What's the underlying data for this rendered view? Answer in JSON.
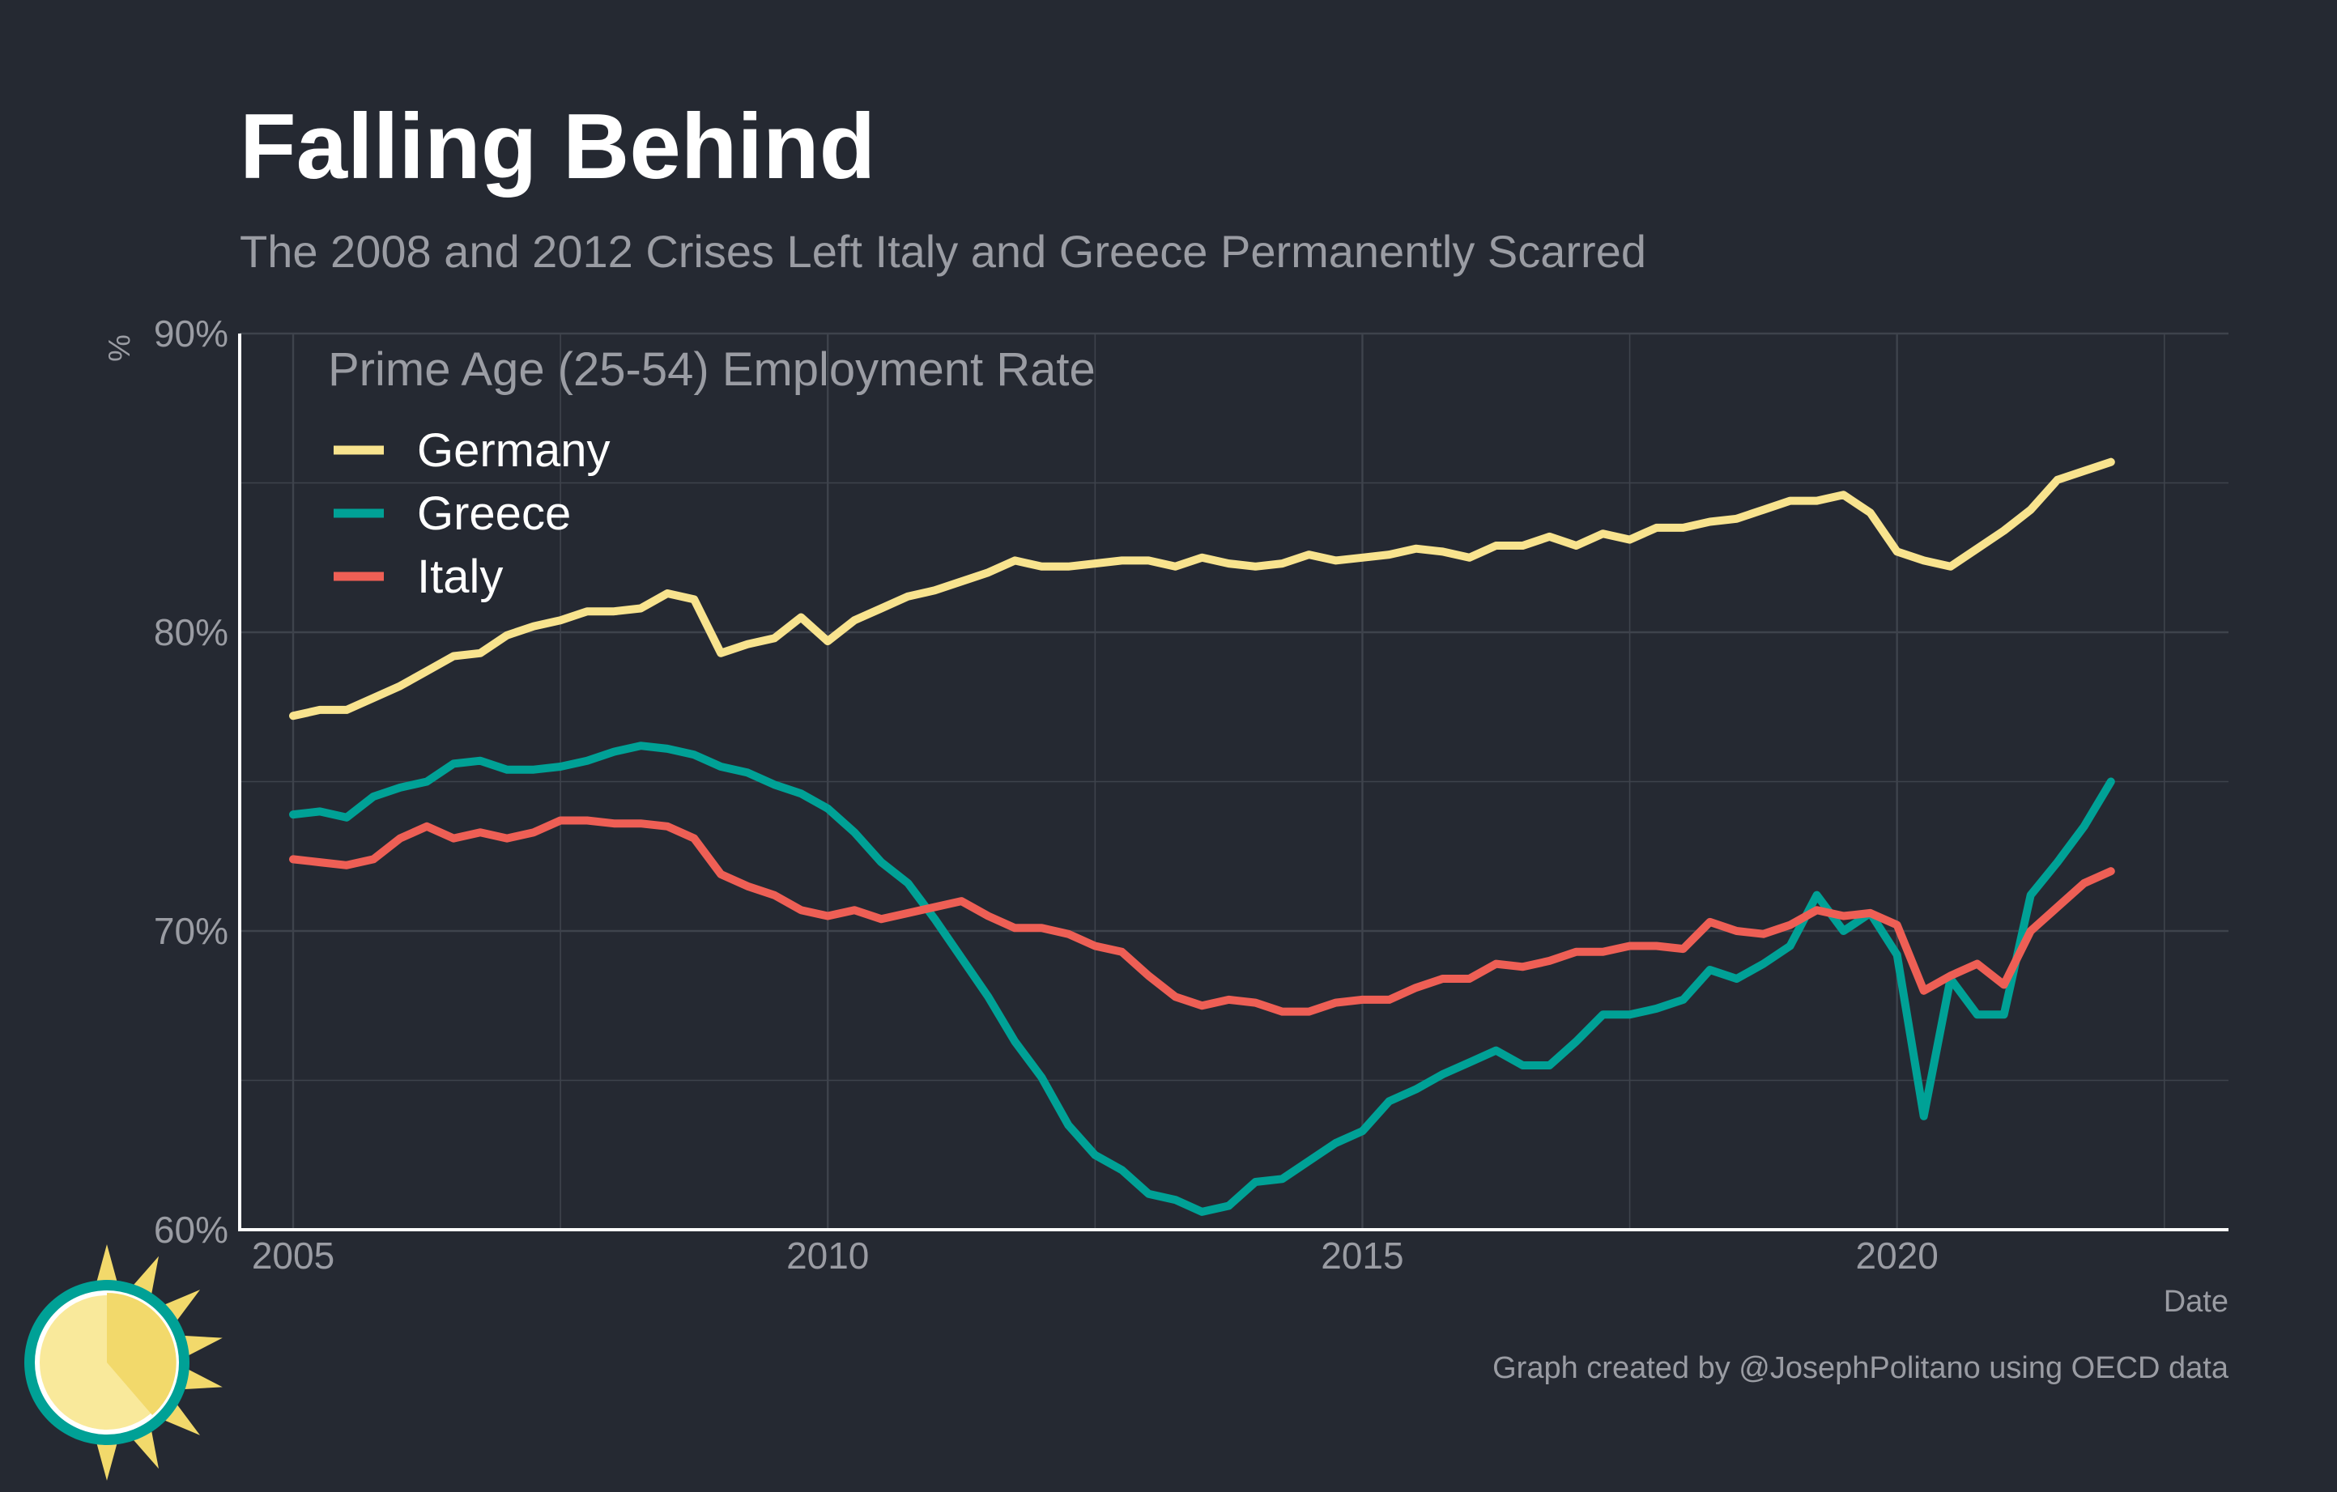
{
  "title": "Falling Behind",
  "subtitle": "The 2008 and 2012 Crises Left Italy and Greece Permanently Scarred",
  "caption": "Graph created by @JosephPolitano using OECD data",
  "colors": {
    "background": "#252932",
    "text": "#ffffff",
    "muted_text": "#9a9ca3",
    "grid": "#3e434c",
    "axis": "#ffffff",
    "Germany": "#f8e38e",
    "Greece": "#00a196",
    "Italy": "#ee5f55"
  },
  "logo": {
    "icon": "sun-logo-icon"
  },
  "chart_data": {
    "type": "line",
    "title": "Falling Behind",
    "subtitle": "The 2008 and 2012 Crises Left Italy and Greece Permanently Scarred",
    "xlabel": "Date",
    "ylabel": "%",
    "legend_title": "Prime Age (25-54) Employment Rate",
    "legend_position": "top-left (inside plot)",
    "grid": true,
    "xlim": [
      2004.5,
      2023.1
    ],
    "ylim": [
      60,
      90
    ],
    "x_ticks": [
      2005,
      2010,
      2015,
      2020
    ],
    "x_tick_labels": [
      "2005",
      "2010",
      "2015",
      "2020"
    ],
    "y_ticks": [
      60,
      70,
      80,
      90
    ],
    "y_tick_labels": [
      "60%",
      "70%",
      "80%",
      "90%"
    ],
    "x": [
      2005.0,
      2005.25,
      2005.5,
      2005.75,
      2006.0,
      2006.25,
      2006.5,
      2006.75,
      2007.0,
      2007.25,
      2007.5,
      2007.75,
      2008.0,
      2008.25,
      2008.5,
      2008.75,
      2009.0,
      2009.25,
      2009.5,
      2009.75,
      2010.0,
      2010.25,
      2010.5,
      2010.75,
      2011.0,
      2011.25,
      2011.5,
      2011.75,
      2012.0,
      2012.25,
      2012.5,
      2012.75,
      2013.0,
      2013.25,
      2013.5,
      2013.75,
      2014.0,
      2014.25,
      2014.5,
      2014.75,
      2015.0,
      2015.25,
      2015.5,
      2015.75,
      2016.0,
      2016.25,
      2016.5,
      2016.75,
      2017.0,
      2017.25,
      2017.5,
      2017.75,
      2018.0,
      2018.25,
      2018.5,
      2018.75,
      2019.0,
      2019.25,
      2019.5,
      2019.75,
      2020.0,
      2020.25,
      2020.5,
      2020.75,
      2021.0,
      2021.25,
      2021.5,
      2021.75,
      2022.0
    ],
    "series": [
      {
        "name": "Germany",
        "values": [
          77.2,
          77.4,
          77.4,
          77.8,
          78.2,
          78.7,
          79.2,
          79.3,
          79.9,
          80.2,
          80.4,
          80.7,
          80.7,
          80.8,
          81.3,
          81.1,
          79.3,
          79.6,
          79.8,
          80.5,
          79.7,
          80.4,
          80.8,
          81.2,
          81.4,
          81.7,
          82.0,
          82.4,
          82.2,
          82.2,
          82.3,
          82.4,
          82.4,
          82.2,
          82.5,
          82.3,
          82.2,
          82.3,
          82.6,
          82.4,
          82.5,
          82.6,
          82.8,
          82.7,
          82.5,
          82.9,
          82.9,
          83.2,
          82.9,
          83.3,
          83.1,
          83.5,
          83.5,
          83.7,
          83.8,
          84.1,
          84.4,
          84.4,
          84.6,
          84.0,
          82.7,
          82.4,
          82.2,
          82.8,
          83.4,
          84.1,
          85.1,
          85.4,
          85.7
        ]
      },
      {
        "name": "Greece",
        "values": [
          73.9,
          74.0,
          73.8,
          74.5,
          74.8,
          75.0,
          75.6,
          75.7,
          75.4,
          75.4,
          75.5,
          75.7,
          76.0,
          76.2,
          76.1,
          75.9,
          75.5,
          75.3,
          74.9,
          74.6,
          74.1,
          73.3,
          72.3,
          71.6,
          70.4,
          69.1,
          67.8,
          66.3,
          65.1,
          63.5,
          62.5,
          62.0,
          61.2,
          61.0,
          60.6,
          60.8,
          61.6,
          61.7,
          62.3,
          62.9,
          63.3,
          64.3,
          64.7,
          65.2,
          65.6,
          66.0,
          65.5,
          65.5,
          66.3,
          67.2,
          67.2,
          67.4,
          67.7,
          68.7,
          68.4,
          68.9,
          69.5,
          71.2,
          70.0,
          70.6,
          69.2,
          63.8,
          68.4,
          67.2,
          67.2,
          71.2,
          72.3,
          73.5,
          75.0
        ]
      },
      {
        "name": "Italy",
        "values": [
          72.4,
          72.3,
          72.2,
          72.4,
          73.1,
          73.5,
          73.1,
          73.3,
          73.1,
          73.3,
          73.7,
          73.7,
          73.6,
          73.6,
          73.5,
          73.1,
          71.9,
          71.5,
          71.2,
          70.7,
          70.5,
          70.7,
          70.4,
          70.6,
          70.8,
          71.0,
          70.5,
          70.1,
          70.1,
          69.9,
          69.5,
          69.3,
          68.5,
          67.8,
          67.5,
          67.7,
          67.6,
          67.3,
          67.3,
          67.6,
          67.7,
          67.7,
          68.1,
          68.4,
          68.4,
          68.9,
          68.8,
          69.0,
          69.3,
          69.3,
          69.5,
          69.5,
          69.4,
          70.3,
          70.0,
          69.9,
          70.2,
          70.7,
          70.5,
          70.6,
          70.2,
          68.0,
          68.5,
          68.9,
          68.2,
          70.0,
          70.8,
          71.6,
          72.0
        ]
      }
    ]
  }
}
